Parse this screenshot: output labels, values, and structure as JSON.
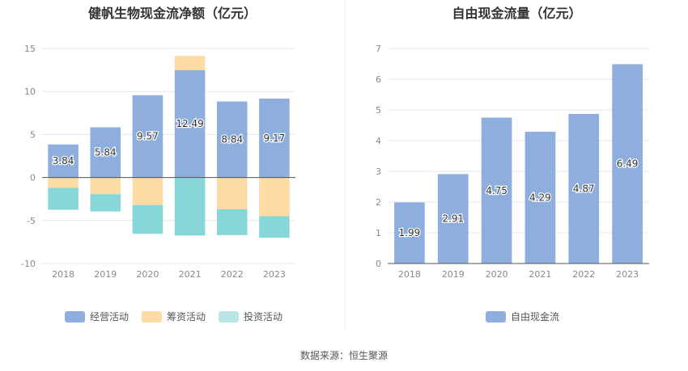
{
  "colors": {
    "operating": "#8eaedd",
    "financing": "#fddba3",
    "investing": "#87d7d9",
    "free_cash_flow": "#8eaedd",
    "grid": "#e6e6f0",
    "zero_line": "#555555"
  },
  "source": "数据来源：恒生聚源",
  "chart_data": [
    {
      "type": "bar",
      "stacked": true,
      "title": "健帆生物现金流净额（亿元）",
      "categories": [
        "2018",
        "2019",
        "2020",
        "2021",
        "2022",
        "2023"
      ],
      "ylim": [
        -10,
        15
      ],
      "yticks": [
        15,
        10,
        5,
        0,
        -5,
        -10
      ],
      "grid": true,
      "legend_position": "bottom",
      "series": [
        {
          "name": "经营活动",
          "key": "operating",
          "values": [
            3.84,
            5.84,
            9.57,
            12.49,
            8.84,
            9.17
          ],
          "labels": [
            "3.84",
            "5.84",
            "9.57",
            "12.49",
            "8.84",
            "9.17"
          ]
        },
        {
          "name": "筹资活动",
          "key": "financing",
          "values": [
            -1.2,
            -1.95,
            -3.2,
            1.65,
            -3.7,
            -4.5
          ]
        },
        {
          "name": "投资活动",
          "key": "investing",
          "values": [
            -2.55,
            -2.0,
            -3.35,
            -6.75,
            -3.0,
            -2.5
          ]
        }
      ]
    },
    {
      "type": "bar",
      "title": "自由现金流量（亿元）",
      "categories": [
        "2018",
        "2019",
        "2020",
        "2021",
        "2022",
        "2023"
      ],
      "ylim": [
        0,
        7
      ],
      "yticks": [
        7,
        6,
        5,
        4,
        3,
        2,
        1,
        0
      ],
      "grid": true,
      "legend_position": "bottom",
      "series": [
        {
          "name": "自由现金流",
          "key": "free_cash_flow",
          "values": [
            1.99,
            2.91,
            4.75,
            4.29,
            4.87,
            6.49
          ],
          "labels": [
            "1.99",
            "2.91",
            "4.75",
            "4.29",
            "4.87",
            "6.49"
          ]
        }
      ]
    }
  ]
}
